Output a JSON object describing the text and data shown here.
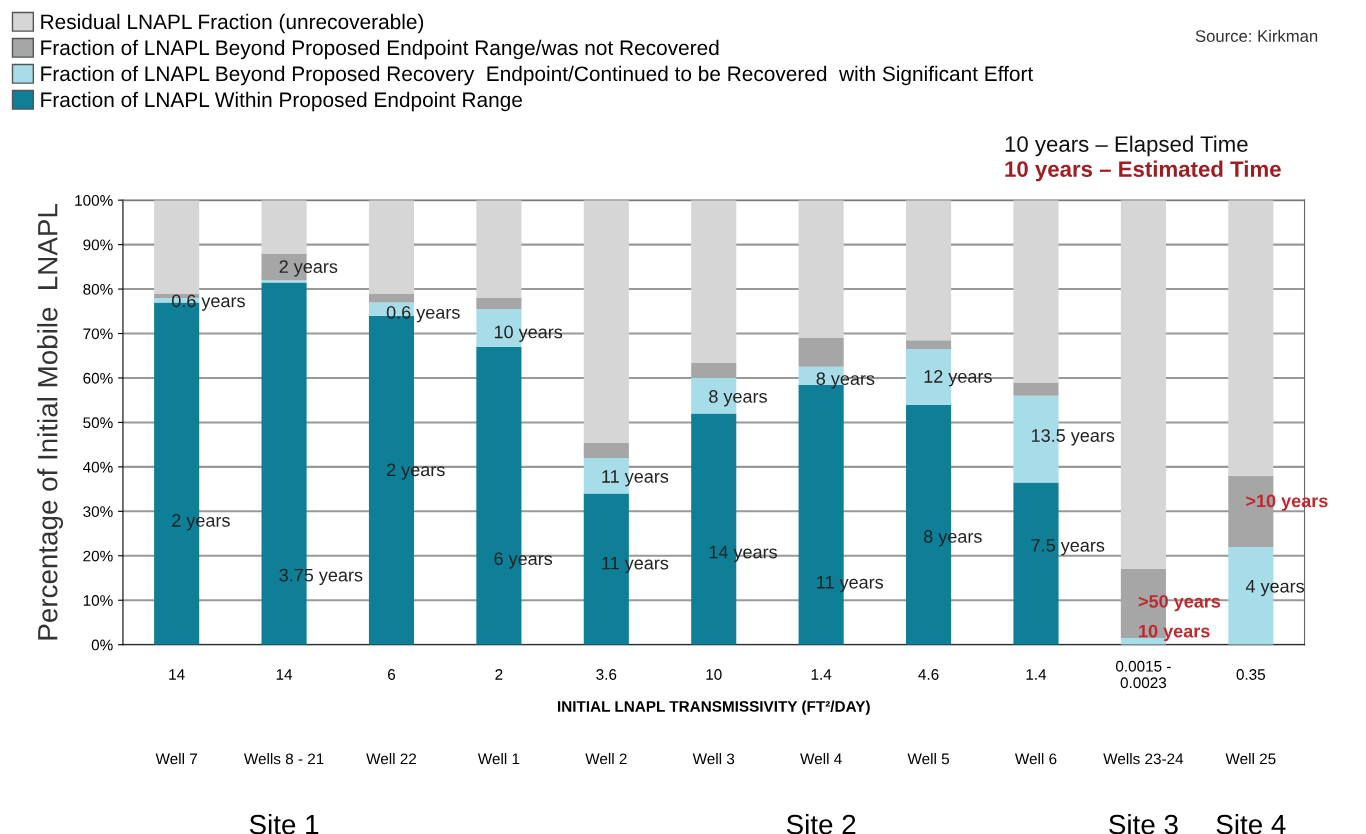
{
  "chart_data": {
    "type": "bar",
    "stacked": true,
    "categories": [
      "Well 7",
      "Wells 8 - 21",
      "Well 22",
      "Well 1",
      "Well 2",
      "Well 3",
      "Well 4",
      "Well 5",
      "Well 6",
      "Wells 23-24",
      "Well 25"
    ],
    "series": [
      {
        "name": "Fraction of LNAPL Within Proposed Endpoint Range",
        "color": "#0e7f97",
        "values": [
          77,
          81.5,
          74,
          67,
          34,
          52,
          58.5,
          54,
          36.5,
          0,
          0
        ]
      },
      {
        "name": "Fraction of LNAPL Beyond Proposed Recovery  Endpoint/Continued to be Recovered  with Significant Effort",
        "color": "#a6dde9",
        "values": [
          1,
          0.5,
          3,
          8.5,
          8,
          8,
          4,
          12.5,
          19.5,
          1.5,
          22
        ]
      },
      {
        "name": "Fraction of LNAPL Beyond Proposed Endpoint Range/was not Recovered",
        "color": "#a6a6a6",
        "values": [
          1,
          6,
          2,
          2.5,
          3.5,
          3.5,
          6.5,
          2,
          3,
          15.5,
          16
        ]
      },
      {
        "name": "Residual LNAPL Fraction (unrecoverable)",
        "color": "#d6d6d6",
        "values": [
          21,
          12,
          21,
          22,
          54.5,
          36.5,
          31,
          31.5,
          41,
          83,
          62
        ]
      }
    ],
    "ylabel": "Percentage of Initial Mobile  LNAPL",
    "xlabel": "INITIAL LNAPL TRANSMISSIVITY (FT²/DAY)",
    "ylim": [
      0,
      100
    ],
    "yticks": [
      {
        "value": 0,
        "label": "0%"
      },
      {
        "value": 10,
        "label": "10%"
      },
      {
        "value": 20,
        "label": "20%"
      },
      {
        "value": 30,
        "label": "30%"
      },
      {
        "value": 40,
        "label": "40%"
      },
      {
        "value": 50,
        "label": "50%"
      },
      {
        "value": 60,
        "label": "60%"
      },
      {
        "value": 70,
        "label": "70%"
      },
      {
        "value": 80,
        "label": "80%"
      },
      {
        "value": 90,
        "label": "90%"
      },
      {
        "value": 100,
        "label": "100%"
      }
    ],
    "grid": "y",
    "legend": "top left",
    "annotations": [
      "0.6 years",
      "2 years",
      "2 years",
      "3.75 years",
      "0.6 years",
      "2 years",
      "10 years",
      "6 years",
      "11 years",
      "11 years",
      "8 years",
      "14 years",
      "8 years",
      "11 years",
      "12 years",
      "8 years",
      "13.5 years",
      "7.5 years",
      ">50 years",
      "10 years",
      ">10 years",
      "4 years",
      "14",
      "14",
      "6",
      "2",
      "3.6",
      "10",
      "1.4",
      "4.6",
      "1.4",
      "0.0015 -\n0.0023",
      "0.35",
      "Site 1",
      "Site 2",
      "Site 3",
      "Site 4",
      "Source: Kirkman",
      "10 years – Elapsed Time",
      "10 years – Estimated Time"
    ]
  }
}
